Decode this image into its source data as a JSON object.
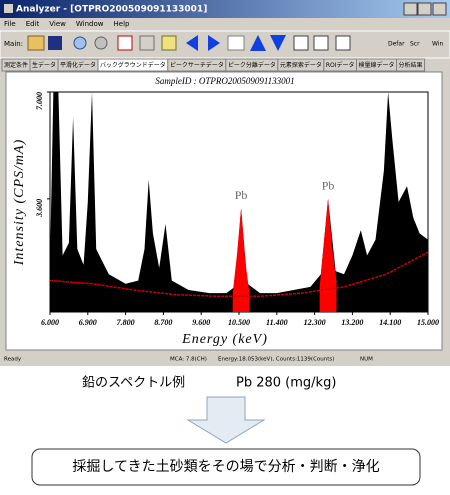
{
  "window": {
    "title": "Analyzer - [OTPRO200509091133001]",
    "menu": [
      "File",
      "Edit",
      "View",
      "Window",
      "Help"
    ],
    "toolbar_label": "Main:",
    "toolbar_right": [
      "Defar",
      "Scr",
      "Win"
    ],
    "tabs": [
      "測定条件",
      "生データ",
      "平滑化データ",
      "バックグラウンドデータ",
      "ピークサーチデータ",
      "ピーク分離データ",
      "元素探索データ",
      "ROIデータ",
      "検量線データ",
      "分析結果"
    ],
    "status": [
      "Ready",
      "MCA: 7.8(CH)",
      "Energy:18.053(keV), Counts:1139(Counts)",
      "NUM"
    ]
  },
  "chart_data": {
    "type": "area",
    "title": "SampleID : OTPRO200509091133001",
    "x_label": "Energy (keV)",
    "y_label": "Intensity (CPS/mA)",
    "xlim": [
      6,
      15
    ],
    "xticks": [
      {
        "value": 6,
        "label": "6.000"
      },
      {
        "value": 6.9,
        "label": "6.900"
      },
      {
        "value": 7.8,
        "label": "7.800"
      },
      {
        "value": 8.7,
        "label": "8.700"
      },
      {
        "value": 9.6,
        "label": "9.600"
      },
      {
        "value": 10.5,
        "label": "10.500"
      },
      {
        "value": 11.4,
        "label": "11.400"
      },
      {
        "value": 12.3,
        "label": "12.300"
      },
      {
        "value": 13.2,
        "label": "13.200"
      },
      {
        "value": 14.1,
        "label": "14.100"
      },
      {
        "value": 15,
        "label": "15.000"
      }
    ],
    "ylim": [
      0,
      7
    ],
    "yticks": [
      {
        "value": 3.6,
        "label": "3.600"
      },
      {
        "value": 7,
        "label": "7.000"
      }
    ],
    "series": [
      {
        "color": "#000000",
        "x": [
          6.0,
          6.08,
          6.2,
          6.3,
          6.45,
          6.55,
          6.65,
          6.8,
          6.9,
          7.0,
          7.1,
          7.4,
          7.8,
          8.1,
          8.25,
          8.35,
          8.45,
          8.6,
          8.75,
          8.9,
          9.3,
          9.8,
          10.2,
          10.4,
          10.55,
          10.7,
          11.0,
          11.4,
          11.8,
          12.2,
          12.45,
          12.62,
          12.8,
          13.0,
          13.2,
          13.4,
          13.55,
          13.75,
          13.95,
          14.05,
          14.15,
          14.3,
          14.5,
          14.65,
          14.8,
          15.0
        ],
        "values": [
          1.5,
          7.0,
          7.0,
          1.8,
          2.2,
          6.2,
          2.0,
          1.5,
          3.5,
          7.0,
          2.0,
          1.2,
          0.9,
          1.0,
          2.0,
          4.2,
          2.5,
          1.4,
          2.8,
          1.0,
          0.7,
          0.6,
          0.6,
          0.8,
          3.3,
          0.9,
          0.6,
          0.6,
          0.7,
          0.8,
          1.2,
          3.6,
          1.3,
          1.2,
          1.8,
          2.6,
          1.8,
          2.3,
          4.5,
          7.0,
          5.5,
          3.5,
          4.0,
          3.0,
          2.5,
          2.3
        ]
      },
      {
        "color": "#ff0000",
        "x": [
          10.35,
          10.45,
          10.55,
          10.65,
          10.75
        ],
        "values": [
          0.6,
          1.8,
          3.3,
          1.6,
          0.6
        ]
      },
      {
        "color": "#ff0000",
        "x": [
          12.42,
          12.52,
          12.62,
          12.72,
          12.82
        ],
        "values": [
          0.8,
          2.2,
          3.6,
          2.0,
          1.0
        ]
      },
      {
        "type": "line",
        "color": "#cc0000",
        "x": [
          6.0,
          7.0,
          8.0,
          9.0,
          10.0,
          11.0,
          12.0,
          13.0,
          14.0,
          15.0
        ],
        "values": [
          1.0,
          0.9,
          0.7,
          0.55,
          0.5,
          0.5,
          0.6,
          0.8,
          1.2,
          1.9
        ]
      }
    ],
    "annotations": [
      "Pb",
      "Pb"
    ]
  },
  "caption": "鉛のスペクトル例",
  "caption_sample": "Pb 280 (mg/kg)",
  "conclusion": "採掘してきた土砂類をその場で分析・判断・浄化"
}
